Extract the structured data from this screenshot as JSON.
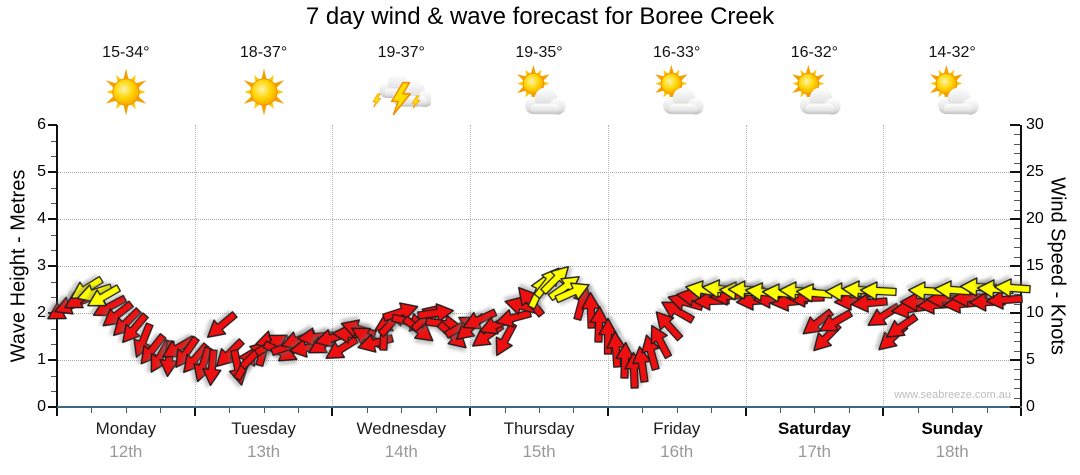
{
  "title": "7 day wind & wave forecast for Boree Creek",
  "watermark": "www.seabreeze.com.au",
  "days": [
    {
      "name": "Monday",
      "date": "12th",
      "temp": "15-34°",
      "icon": "sunny",
      "bold": false
    },
    {
      "name": "Tuesday",
      "date": "13th",
      "temp": "18-37°",
      "icon": "sunny",
      "bold": false
    },
    {
      "name": "Wednesday",
      "date": "14th",
      "temp": "19-37°",
      "icon": "thunderstorm",
      "bold": false
    },
    {
      "name": "Thursday",
      "date": "15th",
      "temp": "19-35°",
      "icon": "partly-cloudy",
      "bold": false
    },
    {
      "name": "Friday",
      "date": "16th",
      "temp": "16-33°",
      "icon": "partly-cloudy",
      "bold": false
    },
    {
      "name": "Saturday",
      "date": "17th",
      "temp": "16-32°",
      "icon": "partly-cloudy",
      "bold": true
    },
    {
      "name": "Sunday",
      "date": "18th",
      "temp": "14-32°",
      "icon": "partly-cloudy",
      "bold": true
    }
  ],
  "left_axis": {
    "label": "Wave Height - Metres",
    "min": 0,
    "max": 6,
    "ticks": [
      0,
      1,
      2,
      3,
      4,
      5,
      6
    ]
  },
  "right_axis": {
    "label": "Wind Speed - Knots",
    "min": 0,
    "max": 30,
    "ticks": [
      0,
      5,
      10,
      15,
      20,
      25,
      30
    ]
  },
  "colors": {
    "arrow_red": "#ee1010",
    "arrow_yellow": "#ffff00",
    "arrow_outline": "#1c1c1c",
    "axis_bottom_line": "#3b6b84",
    "grid": "#a8a8a8",
    "date_text": "#999999",
    "watermark_text": "#bdbdbd"
  },
  "chart_data": {
    "type": "wind-arrow-series",
    "title": "7 day wind & wave forecast for Boree Creek",
    "x_axis": {
      "unit": "hours",
      "range": [
        0,
        168
      ],
      "days": 7,
      "minor_tick_hours": 6,
      "grid": "dotted day boundaries"
    },
    "left_y_axis": {
      "label": "Wave Height - Metres",
      "range": [
        0,
        6
      ]
    },
    "right_y_axis": {
      "label": "Wind Speed - Knots",
      "range": [
        0,
        30
      ]
    },
    "arrow_convention": "each arrow = [hour_0_to_168, wind_speed_knots, screen_direction_deg (0=right,90=down,180=left,270=up), color r=red y=yellow]",
    "arrows": [
      [
        1,
        10.3,
        150,
        "r"
      ],
      [
        2.5,
        10.9,
        158,
        "r"
      ],
      [
        4,
        11.5,
        150,
        "r"
      ],
      [
        5,
        12.6,
        148,
        "y"
      ],
      [
        6.5,
        12.1,
        162,
        "y"
      ],
      [
        8,
        11.7,
        150,
        "y"
      ],
      [
        9,
        10.6,
        152,
        "r"
      ],
      [
        10.5,
        9.8,
        142,
        "r"
      ],
      [
        12,
        8.9,
        135,
        "r"
      ],
      [
        13.5,
        8.3,
        130,
        "r"
      ],
      [
        15,
        7.0,
        112,
        "r"
      ],
      [
        16.5,
        6.1,
        128,
        "r"
      ],
      [
        18,
        5.3,
        120,
        "r"
      ],
      [
        19.5,
        5.1,
        95,
        "r"
      ],
      [
        21,
        6.3,
        150,
        "r"
      ],
      [
        22.5,
        5.7,
        125,
        "r"
      ],
      [
        24,
        5.1,
        130,
        "r"
      ],
      [
        25.5,
        4.5,
        108,
        "r"
      ],
      [
        27,
        4.1,
        95,
        "r"
      ],
      [
        28.5,
        8.6,
        140,
        "r"
      ],
      [
        30,
        5.6,
        135,
        "r"
      ],
      [
        31.5,
        4.1,
        78,
        "r"
      ],
      [
        33,
        4.7,
        300,
        "r"
      ],
      [
        34.5,
        5.6,
        315,
        "r"
      ],
      [
        36,
        6.3,
        285,
        "r"
      ],
      [
        37.5,
        6.7,
        330,
        "r"
      ],
      [
        39,
        5.9,
        25,
        "r"
      ],
      [
        40.5,
        6.5,
        340,
        "r"
      ],
      [
        42,
        7.1,
        160,
        "r"
      ],
      [
        43.5,
        6.3,
        170,
        "r"
      ],
      [
        45,
        7.5,
        175,
        "r"
      ],
      [
        46.5,
        6.7,
        150,
        "r"
      ],
      [
        48,
        7.3,
        165,
        "r"
      ],
      [
        49.5,
        6.2,
        148,
        "r"
      ],
      [
        51,
        7.8,
        182,
        "r"
      ],
      [
        52.5,
        8.3,
        198,
        "r"
      ],
      [
        54,
        7.4,
        210,
        "r"
      ],
      [
        55.5,
        6.8,
        165,
        "r"
      ],
      [
        57,
        8.0,
        272,
        "r"
      ],
      [
        58.5,
        9.2,
        312,
        "r"
      ],
      [
        60,
        10.1,
        342,
        "r"
      ],
      [
        61.5,
        9.0,
        14,
        "r"
      ],
      [
        63,
        8.2,
        38,
        "r"
      ],
      [
        64.5,
        9.6,
        318,
        "r"
      ],
      [
        66,
        10.0,
        352,
        "r"
      ],
      [
        67.5,
        8.8,
        8,
        "r"
      ],
      [
        69,
        7.6,
        42,
        "r"
      ],
      [
        70.5,
        8.6,
        330,
        "r"
      ],
      [
        72,
        8.4,
        140,
        "r"
      ],
      [
        73.5,
        9.3,
        155,
        "r"
      ],
      [
        75,
        7.6,
        145,
        "r"
      ],
      [
        76.5,
        8.7,
        158,
        "r"
      ],
      [
        78,
        7.1,
        118,
        "r"
      ],
      [
        79.5,
        9.5,
        165,
        "r"
      ],
      [
        81,
        10.7,
        195,
        "r"
      ],
      [
        82.5,
        11.3,
        230,
        "r"
      ],
      [
        84,
        12.3,
        295,
        "y"
      ],
      [
        85.5,
        13.3,
        308,
        "y"
      ],
      [
        87,
        13.6,
        315,
        "y"
      ],
      [
        88.5,
        12.8,
        324,
        "y"
      ],
      [
        90,
        12.2,
        336,
        "y"
      ],
      [
        91.5,
        11.2,
        285,
        "r"
      ],
      [
        93,
        10.3,
        268,
        "r"
      ],
      [
        94.5,
        8.8,
        272,
        "r"
      ],
      [
        96,
        7.6,
        270,
        "r"
      ],
      [
        97.5,
        6.2,
        266,
        "r"
      ],
      [
        99,
        5.0,
        272,
        "r"
      ],
      [
        100.5,
        3.9,
        268,
        "r"
      ],
      [
        102,
        4.6,
        262,
        "r"
      ],
      [
        103.5,
        5.8,
        255,
        "r"
      ],
      [
        105,
        7.0,
        242,
        "r"
      ],
      [
        106.5,
        8.7,
        228,
        "r"
      ],
      [
        108,
        10.2,
        210,
        "r"
      ],
      [
        109.5,
        11.2,
        196,
        "r"
      ],
      [
        111,
        11.7,
        188,
        "r"
      ],
      [
        112.5,
        12.4,
        190,
        "y"
      ],
      [
        114,
        11.3,
        178,
        "r"
      ],
      [
        115.5,
        12.6,
        186,
        "y"
      ],
      [
        117,
        11.8,
        176,
        "r"
      ],
      [
        118.5,
        12.3,
        184,
        "y"
      ],
      [
        120,
        12.4,
        182,
        "y"
      ],
      [
        121.5,
        11.3,
        176,
        "r"
      ],
      [
        123,
        12.2,
        186,
        "y"
      ],
      [
        124.5,
        11.5,
        178,
        "r"
      ],
      [
        126,
        12.1,
        184,
        "y"
      ],
      [
        127.5,
        11.2,
        174,
        "r"
      ],
      [
        129,
        12.3,
        183,
        "y"
      ],
      [
        130.5,
        11.6,
        178,
        "r"
      ],
      [
        132,
        12.1,
        185,
        "y"
      ],
      [
        132.5,
        8.9,
        142,
        "r"
      ],
      [
        134,
        7.3,
        134,
        "r"
      ],
      [
        135.5,
        9.0,
        150,
        "r"
      ],
      [
        137,
        12.2,
        182,
        "y"
      ],
      [
        138.5,
        11.3,
        176,
        "r"
      ],
      [
        140,
        12.4,
        184,
        "y"
      ],
      [
        141.5,
        11.1,
        175,
        "r"
      ],
      [
        143,
        12.3,
        183,
        "y"
      ],
      [
        144,
        9.7,
        148,
        "r"
      ],
      [
        145.5,
        7.3,
        138,
        "r"
      ],
      [
        147,
        8.5,
        145,
        "r"
      ],
      [
        148.5,
        10.4,
        172,
        "r"
      ],
      [
        150,
        11.2,
        180,
        "r"
      ],
      [
        151.5,
        12.3,
        183,
        "y"
      ],
      [
        153,
        10.9,
        176,
        "r"
      ],
      [
        154.5,
        11.5,
        178,
        "r"
      ],
      [
        156,
        12.4,
        184,
        "y"
      ],
      [
        157.5,
        11.0,
        175,
        "r"
      ],
      [
        159,
        11.6,
        178,
        "r"
      ],
      [
        160.5,
        12.8,
        182,
        "y"
      ],
      [
        162,
        11.2,
        178,
        "r"
      ],
      [
        163.5,
        12.6,
        183,
        "y"
      ],
      [
        165,
        11.4,
        176,
        "r"
      ],
      [
        166.5,
        12.7,
        184,
        "y"
      ]
    ]
  }
}
